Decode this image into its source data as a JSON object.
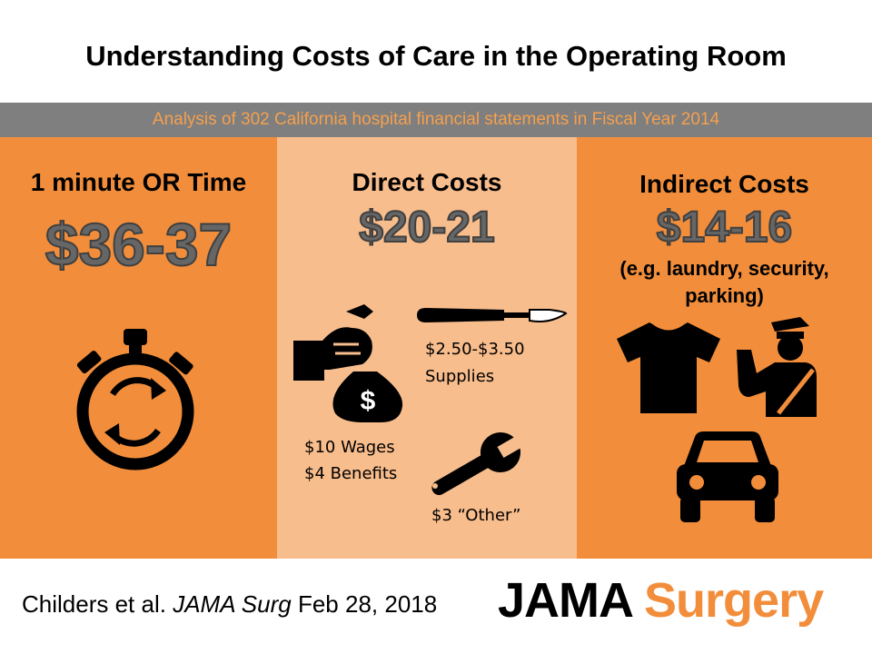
{
  "title": "Understanding Costs of Care in the Operating Room",
  "subtitle": "Analysis of 302 California hospital financial statements in Fiscal Year 2014",
  "panels": {
    "or_time": {
      "title": "1 minute OR Time",
      "amount": "$36-37",
      "icon": "stopwatch-icon"
    },
    "direct": {
      "title": "Direct Costs",
      "amount": "$20-21",
      "supplies_amount": "$2.50-$3.50",
      "supplies_label": "Supplies",
      "wages": "$10 Wages",
      "benefits": "$4 Benefits",
      "other": "$3 “Other”",
      "icons": [
        "money-bag-icon",
        "scalpel-icon",
        "wrench-icon"
      ]
    },
    "indirect": {
      "title": "Indirect Costs",
      "amount": "$14-16",
      "examples_line1": "(e.g. laundry, security,",
      "examples_line2": "parking)",
      "icons": [
        "tshirt-icon",
        "security-guard-icon",
        "car-icon"
      ]
    }
  },
  "footer": {
    "citation_author": "Childers et al.",
    "citation_journal": "JAMA Surg",
    "citation_date": "Feb 28, 2018",
    "logo_part1": "JAMA",
    "logo_part2": "Surgery"
  },
  "colors": {
    "orange": "#f28e3b",
    "light_orange": "#f8bd8c",
    "gray_bar": "#7f7f7f",
    "subtitle_text": "#f5a04e"
  }
}
